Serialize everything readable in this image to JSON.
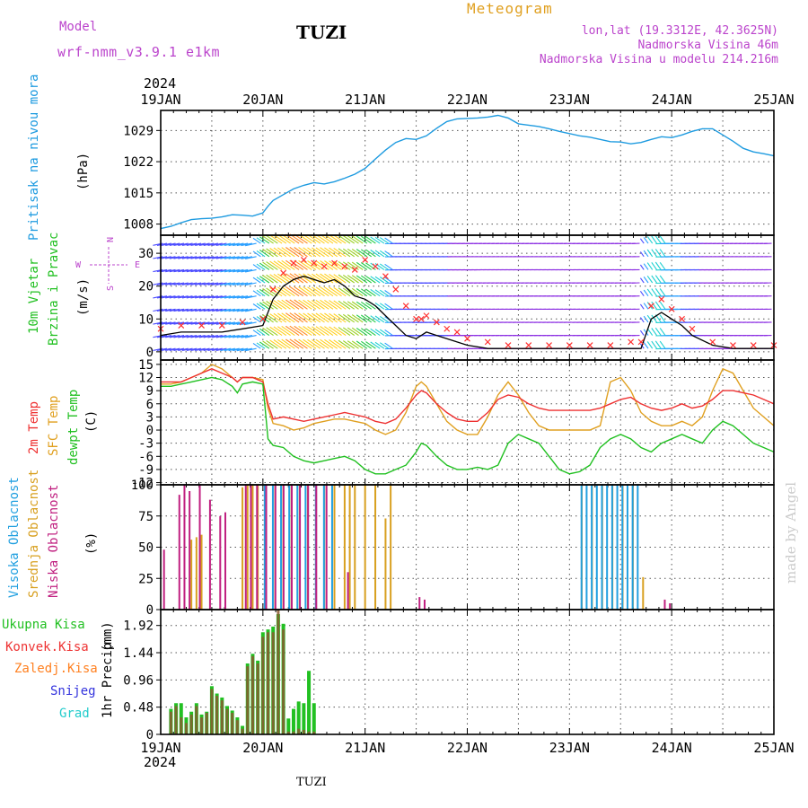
{
  "header": {
    "model_label": "Model",
    "model_name": "wrf-nmm_v3.9.1 e1km",
    "station": "TUZI",
    "title": "Meteogram",
    "lonlat": "lon,lat (19.3312E, 42.3625N)",
    "elevation": "Nadmorska Visina 46m",
    "model_elevation": "Nadmorska Visina u modelu 214.216m",
    "footer_station": "TUZI",
    "credit": "made by Angel"
  },
  "colors": {
    "pressure": "#1e9be0",
    "wind_speed": "#000000",
    "gust": "#ff3030",
    "temp2m": "#ee3030",
    "sfc": "#e0a020",
    "dewpt": "#20c020",
    "high_cloud": "#22a0e0",
    "mid_cloud": "#d8a020",
    "low_cloud": "#c02080",
    "total_precip": "#22c022",
    "conv_precip": "#ee3333",
    "frozen": "#ff8020",
    "snow": "#3333dd",
    "graupel": "#22cccc",
    "title": "#e0a020",
    "meta": "#bb44cc",
    "pressure_label": "#1e9be0"
  },
  "time_axis": {
    "year": "2024",
    "labels": [
      "19JAN",
      "20JAN",
      "21JAN",
      "22JAN",
      "23JAN",
      "24JAN",
      "25JAN"
    ],
    "start_day": 19,
    "end_day": 25
  },
  "chart_data": [
    {
      "type": "line",
      "name": "pressure",
      "ylabel": "Pritisak na nivou mora",
      "unit": "(hPa)",
      "yticks": [
        1008,
        1015,
        1022,
        1029
      ],
      "ylim": [
        1005.5,
        1033.5
      ],
      "x": [
        19.0,
        19.1,
        19.2,
        19.3,
        19.4,
        19.5,
        19.6,
        19.7,
        19.8,
        19.9,
        20.0,
        20.05,
        20.1,
        20.2,
        20.3,
        20.4,
        20.5,
        20.6,
        20.7,
        20.8,
        20.9,
        21.0,
        21.1,
        21.2,
        21.3,
        21.4,
        21.5,
        21.6,
        21.7,
        21.8,
        21.9,
        22.0,
        22.1,
        22.2,
        22.3,
        22.4,
        22.5,
        22.6,
        22.7,
        22.8,
        22.9,
        23.0,
        23.1,
        23.2,
        23.3,
        23.4,
        23.5,
        23.6,
        23.7,
        23.8,
        23.9,
        24.0,
        24.1,
        24.2,
        24.3,
        24.4,
        24.5,
        24.6,
        24.7,
        24.8,
        24.9,
        25.0
      ],
      "values": [
        1007.0,
        1007.5,
        1008.3,
        1009.0,
        1009.2,
        1009.3,
        1009.6,
        1010.1,
        1010.0,
        1009.8,
        1010.5,
        1012.0,
        1013.3,
        1014.6,
        1015.9,
        1016.7,
        1017.3,
        1017.0,
        1017.5,
        1018.3,
        1019.2,
        1020.5,
        1022.6,
        1024.6,
        1026.3,
        1027.2,
        1027.0,
        1027.8,
        1029.5,
        1031.0,
        1031.6,
        1031.7,
        1031.8,
        1032.0,
        1032.4,
        1031.8,
        1030.5,
        1030.2,
        1029.9,
        1029.4,
        1028.8,
        1028.3,
        1027.8,
        1027.5,
        1027.0,
        1026.5,
        1026.4,
        1026.0,
        1026.3,
        1027.0,
        1027.6,
        1027.4,
        1028.0,
        1028.8,
        1029.4,
        1029.4,
        1028.0,
        1026.6,
        1025.0,
        1024.2,
        1023.8,
        1023.3
      ]
    },
    {
      "type": "line",
      "name": "wind",
      "ylabel": "10m Vjetar",
      "ylabel2": "Brzina i Pravac",
      "unit": "(m/s)",
      "compass": [
        "N",
        "E",
        "S",
        "W"
      ],
      "yticks": [
        0,
        10,
        20,
        30
      ],
      "ylim": [
        -2.5,
        35.5
      ],
      "x": [
        19.0,
        19.2,
        19.4,
        19.6,
        19.8,
        20.0,
        20.1,
        20.2,
        20.3,
        20.4,
        20.5,
        20.6,
        20.7,
        20.8,
        20.9,
        21.0,
        21.1,
        21.2,
        21.3,
        21.4,
        21.5,
        21.55,
        21.6,
        21.7,
        21.8,
        21.9,
        22.0,
        22.2,
        22.4,
        22.6,
        22.8,
        23.0,
        23.2,
        23.4,
        23.6,
        23.7,
        23.8,
        23.9,
        24.0,
        24.1,
        24.2,
        24.4,
        24.6,
        24.8,
        25.0
      ],
      "speed": [
        5,
        6,
        6,
        6,
        7,
        8,
        16,
        20,
        22,
        23,
        22,
        21,
        22,
        20,
        17,
        16,
        14,
        11,
        8,
        5,
        4,
        5,
        6,
        5,
        4,
        3,
        2,
        1,
        1,
        1,
        1,
        1,
        1,
        1,
        1,
        1,
        10,
        12,
        10,
        8,
        5,
        2,
        1,
        1,
        1
      ],
      "gust": [
        7,
        8,
        8,
        8,
        9,
        10,
        19,
        24,
        27,
        28,
        27,
        26,
        27,
        26,
        25,
        28,
        26,
        23,
        19,
        14,
        10,
        10,
        11,
        9,
        7,
        6,
        4,
        3,
        2,
        2,
        2,
        2,
        2,
        2,
        3,
        3,
        14,
        16,
        13,
        10,
        7,
        3,
        2,
        2,
        2
      ]
    },
    {
      "type": "line",
      "name": "temperature",
      "ylabel": "2m Temp",
      "ylabel2": "SFC Temp",
      "ylabel3": "dewpt Temp",
      "unit": "(C)",
      "yticks": [
        -12,
        -9,
        -6,
        -3,
        0,
        3,
        6,
        9,
        12,
        15
      ],
      "ylim": [
        -12.5,
        16
      ],
      "x": [
        19.0,
        19.1,
        19.2,
        19.3,
        19.4,
        19.5,
        19.6,
        19.7,
        19.75,
        19.8,
        19.9,
        20.0,
        20.05,
        20.1,
        20.2,
        20.3,
        20.4,
        20.5,
        20.6,
        20.7,
        20.8,
        20.9,
        21.0,
        21.1,
        21.2,
        21.3,
        21.4,
        21.5,
        21.55,
        21.6,
        21.7,
        21.8,
        21.9,
        22.0,
        22.1,
        22.2,
        22.3,
        22.4,
        22.5,
        22.6,
        22.7,
        22.8,
        22.9,
        23.0,
        23.1,
        23.2,
        23.3,
        23.4,
        23.5,
        23.6,
        23.7,
        23.8,
        23.9,
        24.0,
        24.1,
        24.2,
        24.3,
        24.4,
        24.5,
        24.6,
        24.7,
        24.8,
        24.9,
        25.0
      ],
      "temp2m": [
        11,
        11,
        11,
        12,
        13,
        14,
        13,
        12,
        11,
        12,
        12,
        11,
        6,
        2.5,
        3,
        2.5,
        2,
        2.5,
        3,
        3.5,
        4,
        3.5,
        3,
        2,
        1.5,
        2.5,
        5,
        8,
        9,
        8.5,
        6,
        4,
        2.5,
        2,
        2,
        4,
        7,
        8,
        7.5,
        6,
        5,
        4.5,
        4.5,
        4.5,
        4.5,
        4.5,
        5,
        6,
        7,
        7.5,
        6,
        5,
        4.5,
        5,
        6,
        5,
        5.5,
        7,
        9,
        9,
        8.5,
        8,
        7,
        6
      ],
      "sfc": [
        10.5,
        10.5,
        11,
        12,
        13,
        15,
        14,
        12,
        11,
        12,
        12,
        11.5,
        5,
        1.5,
        1,
        0,
        0.5,
        1.5,
        2,
        2.5,
        2.5,
        2,
        1.5,
        0,
        -1,
        0,
        4,
        10,
        11,
        10,
        6,
        2,
        0,
        -1,
        -1,
        3,
        8,
        11,
        8,
        4,
        1,
        0,
        0,
        0,
        0,
        0,
        1,
        11,
        12,
        9,
        4,
        2,
        1,
        1,
        2,
        1,
        3,
        9,
        14,
        13,
        9,
        5,
        3,
        1
      ],
      "dewpt": [
        10,
        10,
        10.5,
        11,
        11.5,
        12,
        11.5,
        10,
        8.5,
        10.5,
        11,
        10.5,
        -2,
        -3.5,
        -4,
        -6,
        -7,
        -7.5,
        -7,
        -6.5,
        -6,
        -7,
        -9,
        -10,
        -10,
        -9,
        -8,
        -5,
        -3,
        -3.5,
        -6,
        -8,
        -9,
        -9,
        -8.5,
        -9,
        -8,
        -3,
        -1,
        -2,
        -3,
        -6,
        -9,
        -10,
        -9.5,
        -8,
        -4,
        -2,
        -1,
        -2,
        -4,
        -5,
        -3,
        -2,
        -1,
        -2,
        -3,
        0,
        2,
        1,
        -1,
        -3,
        -4,
        -5
      ]
    },
    {
      "type": "bar",
      "name": "cloud",
      "ylabel": "Visoka Oblacnost",
      "ylabel2": "Srednja Oblacnost",
      "ylabel3": "Niska Oblacnost",
      "unit": "(%)",
      "yticks": [
        0,
        25,
        50,
        75,
        100
      ],
      "ylim": [
        0,
        100
      ],
      "high": [
        [
          20.0,
          100
        ],
        [
          20.08,
          100
        ],
        [
          20.16,
          100
        ],
        [
          20.24,
          100
        ],
        [
          20.32,
          100
        ],
        [
          20.4,
          100
        ],
        [
          20.5,
          100
        ],
        [
          20.58,
          100
        ],
        [
          20.66,
          100
        ],
        [
          23.1,
          100
        ],
        [
          23.15,
          100
        ],
        [
          23.2,
          100
        ],
        [
          23.25,
          100
        ],
        [
          23.3,
          100
        ],
        [
          23.35,
          100
        ],
        [
          23.4,
          100
        ],
        [
          23.45,
          100
        ],
        [
          23.5,
          100
        ],
        [
          23.55,
          100
        ],
        [
          23.6,
          100
        ],
        [
          23.65,
          100
        ]
      ],
      "mid": [
        [
          19.3,
          56
        ],
        [
          19.35,
          58
        ],
        [
          19.4,
          60
        ],
        [
          19.8,
          98
        ],
        [
          19.85,
          100
        ],
        [
          19.9,
          100
        ],
        [
          19.95,
          100
        ],
        [
          20.03,
          100
        ],
        [
          20.12,
          100
        ],
        [
          20.2,
          100
        ],
        [
          20.28,
          100
        ],
        [
          20.36,
          100
        ],
        [
          20.44,
          100
        ],
        [
          20.52,
          100
        ],
        [
          20.6,
          100
        ],
        [
          20.7,
          100
        ],
        [
          20.8,
          100
        ],
        [
          20.85,
          100
        ],
        [
          20.9,
          100
        ],
        [
          21.0,
          100
        ],
        [
          21.1,
          100
        ],
        [
          21.2,
          73
        ],
        [
          21.25,
          100
        ],
        [
          23.12,
          100
        ],
        [
          23.22,
          100
        ],
        [
          23.32,
          100
        ],
        [
          23.42,
          100
        ],
        [
          23.52,
          100
        ],
        [
          23.62,
          100
        ],
        [
          23.72,
          26
        ]
      ],
      "low": [
        [
          19.05,
          48
        ],
        [
          19.2,
          92
        ],
        [
          19.25,
          100
        ],
        [
          19.3,
          95
        ],
        [
          19.4,
          100
        ],
        [
          19.5,
          88
        ],
        [
          19.6,
          75
        ],
        [
          19.65,
          78
        ],
        [
          19.85,
          100
        ],
        [
          19.9,
          100
        ],
        [
          19.96,
          100
        ],
        [
          20.05,
          100
        ],
        [
          20.14,
          100
        ],
        [
          20.22,
          100
        ],
        [
          20.3,
          100
        ],
        [
          20.38,
          100
        ],
        [
          20.46,
          100
        ],
        [
          20.54,
          100
        ],
        [
          20.64,
          100
        ],
        [
          20.85,
          30
        ],
        [
          21.55,
          10
        ],
        [
          21.6,
          8
        ],
        [
          23.95,
          8
        ],
        [
          24.0,
          5
        ]
      ]
    },
    {
      "type": "bar",
      "name": "precip",
      "ylabel": "1hr Precip",
      "unit": "(mm)",
      "yticks": [
        0,
        0.48,
        0.96,
        1.44,
        1.92
      ],
      "ylim": [
        0,
        2.2
      ],
      "legend": [
        "Ukupna Kisa",
        "Konvek.Kisa",
        "Zaledj.Kisa",
        "Snijeg",
        "Grad"
      ],
      "total": [
        [
          19.1,
          0.45
        ],
        [
          19.15,
          0.55
        ],
        [
          19.2,
          0.55
        ],
        [
          19.25,
          0.3
        ],
        [
          19.3,
          0.4
        ],
        [
          19.35,
          0.55
        ],
        [
          19.4,
          0.35
        ],
        [
          19.45,
          0.4
        ],
        [
          19.5,
          0.85
        ],
        [
          19.55,
          0.72
        ],
        [
          19.6,
          0.65
        ],
        [
          19.65,
          0.5
        ],
        [
          19.7,
          0.42
        ],
        [
          19.75,
          0.3
        ],
        [
          19.8,
          0.15
        ],
        [
          19.85,
          1.25
        ],
        [
          19.9,
          1.42
        ],
        [
          19.95,
          1.3
        ],
        [
          20.0,
          1.8
        ],
        [
          20.05,
          1.85
        ],
        [
          20.1,
          1.9
        ],
        [
          20.15,
          2.12
        ],
        [
          20.2,
          1.95
        ],
        [
          20.25,
          0.28
        ],
        [
          20.3,
          0.45
        ],
        [
          20.35,
          0.58
        ],
        [
          20.4,
          0.55
        ],
        [
          20.45,
          1.12
        ],
        [
          20.5,
          0.55
        ]
      ],
      "conv": [
        [
          19.1,
          0.4
        ],
        [
          19.15,
          0.5
        ],
        [
          19.2,
          0.3
        ],
        [
          19.25,
          0.2
        ],
        [
          19.3,
          0.35
        ],
        [
          19.35,
          0.5
        ],
        [
          19.4,
          0.3
        ],
        [
          19.45,
          0.38
        ],
        [
          19.5,
          0.8
        ],
        [
          19.55,
          0.68
        ],
        [
          19.6,
          0.6
        ],
        [
          19.65,
          0.45
        ],
        [
          19.7,
          0.38
        ],
        [
          19.75,
          0.25
        ],
        [
          19.8,
          0.1
        ],
        [
          19.85,
          1.2
        ],
        [
          19.9,
          1.38
        ],
        [
          19.95,
          1.25
        ],
        [
          20.0,
          1.72
        ],
        [
          20.05,
          1.8
        ],
        [
          20.1,
          1.8
        ],
        [
          20.15,
          2.2
        ],
        [
          20.2,
          1.85
        ],
        [
          20.25,
          0.05
        ],
        [
          20.3,
          0.05
        ],
        [
          20.35,
          0.1
        ],
        [
          20.4,
          0.08
        ],
        [
          20.45,
          0.05
        ],
        [
          20.5,
          0.05
        ]
      ]
    }
  ]
}
